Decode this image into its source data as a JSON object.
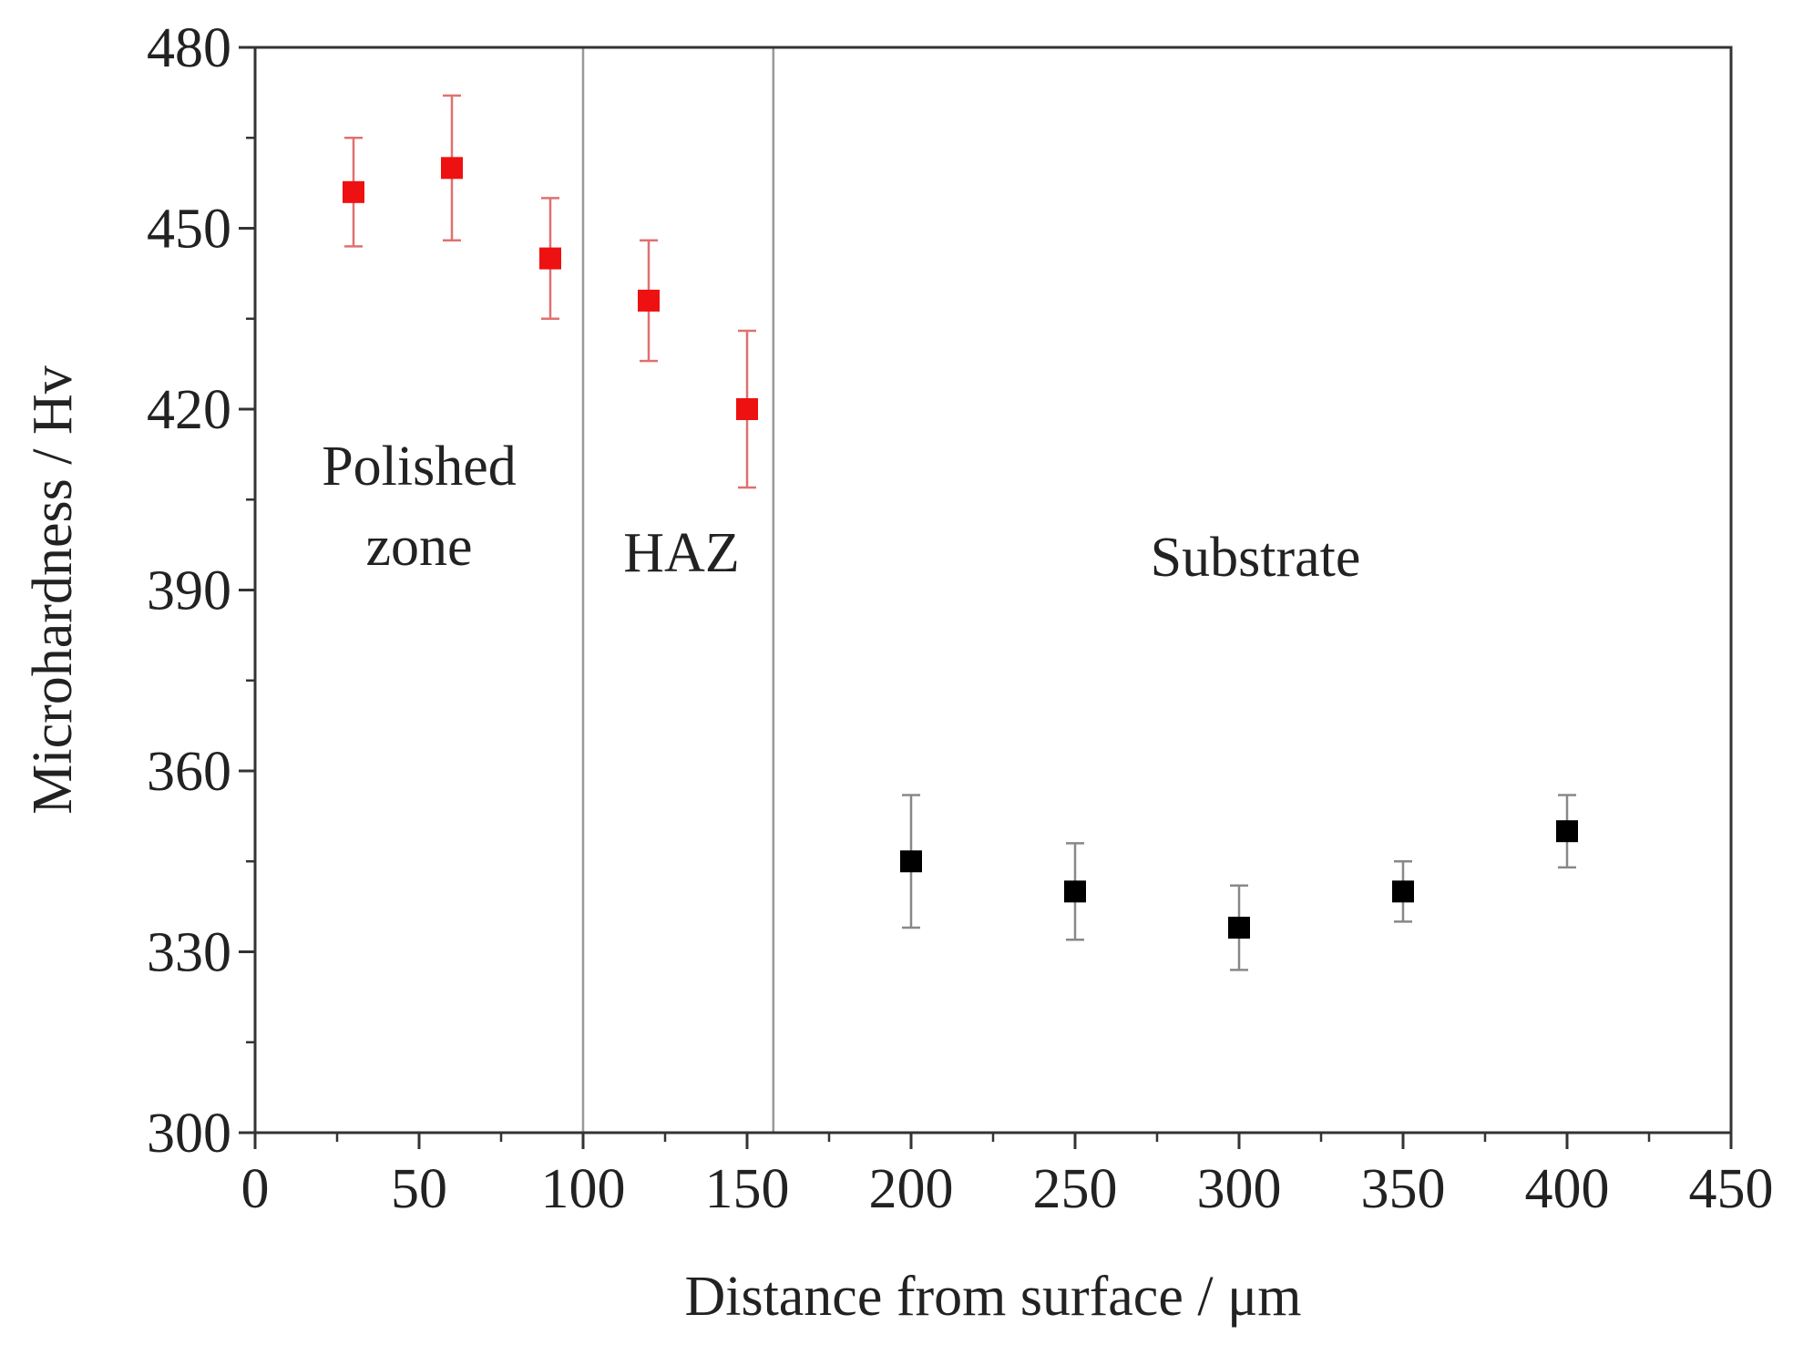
{
  "chart_data": {
    "type": "scatter",
    "title": "",
    "xlabel": "Distance from surface / μm",
    "ylabel": "Microhardness / Hv",
    "xlim": [
      0,
      450
    ],
    "ylim": [
      300,
      480
    ],
    "x_ticks": [
      0,
      50,
      100,
      150,
      200,
      250,
      300,
      350,
      400,
      450
    ],
    "y_ticks": [
      300,
      330,
      360,
      390,
      420,
      450,
      480
    ],
    "grid": false,
    "series": [
      {
        "name": "Polished zone / HAZ",
        "color": "#ee1111",
        "points": [
          {
            "x": 30,
            "y": 456,
            "err_low": 9,
            "err_high": 9
          },
          {
            "x": 60,
            "y": 460,
            "err_low": 12,
            "err_high": 12
          },
          {
            "x": 90,
            "y": 445,
            "err_low": 10,
            "err_high": 10
          },
          {
            "x": 120,
            "y": 438,
            "err_low": 10,
            "err_high": 10
          },
          {
            "x": 150,
            "y": 420,
            "err_low": 13,
            "err_high": 13
          }
        ]
      },
      {
        "name": "Substrate",
        "color": "#000000",
        "points": [
          {
            "x": 200,
            "y": 345,
            "err_low": 11,
            "err_high": 11
          },
          {
            "x": 250,
            "y": 340,
            "err_low": 8,
            "err_high": 8
          },
          {
            "x": 300,
            "y": 334,
            "err_low": 7,
            "err_high": 7
          },
          {
            "x": 350,
            "y": 340,
            "err_low": 5,
            "err_high": 5
          },
          {
            "x": 400,
            "y": 350,
            "err_low": 6,
            "err_high": 6
          }
        ]
      }
    ],
    "boundaries": [
      100,
      158
    ],
    "annotations": [
      {
        "lines": [
          "Polished",
          "zone"
        ],
        "x": 50
      },
      {
        "lines": [
          "HAZ"
        ],
        "x": 130
      },
      {
        "lines": [
          "Substrate"
        ],
        "x": 305
      }
    ]
  },
  "colors": {
    "axis": "#333333",
    "boundary_line": "#999999",
    "error_bar_red": "#e07070",
    "error_bar_black": "#888888"
  }
}
